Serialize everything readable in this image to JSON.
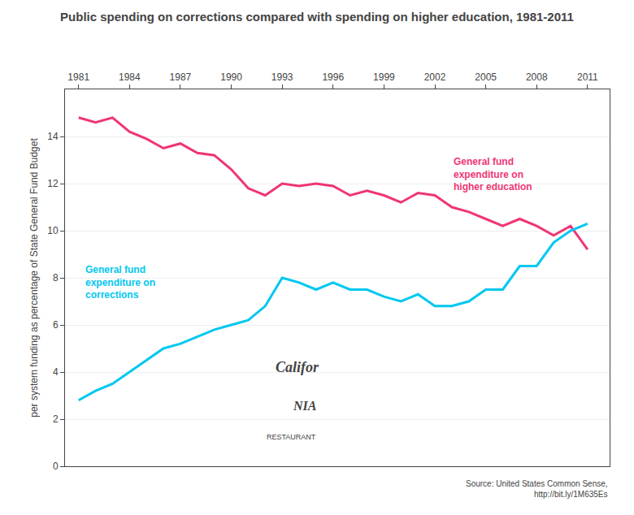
{
  "chart_data": {
    "type": "line",
    "title": "Public spending on corrections compared with spending on higher education, 1981-2011",
    "ylabel": "per system funding as percentage of State General Fund Budget",
    "x": [
      1981,
      1982,
      1983,
      1984,
      1985,
      1986,
      1987,
      1988,
      1989,
      1990,
      1991,
      1992,
      1993,
      1994,
      1995,
      1996,
      1997,
      1998,
      1999,
      2000,
      2001,
      2002,
      2003,
      2004,
      2005,
      2006,
      2007,
      2008,
      2009,
      2010,
      2011
    ],
    "series": [
      {
        "color": "#f03575",
        "values": [
          14.8,
          14.6,
          14.8,
          14.2,
          13.9,
          13.5,
          13.7,
          13.3,
          13.2,
          12.6,
          11.8,
          11.5,
          12.0,
          11.9,
          12.0,
          11.9,
          11.5,
          11.7,
          11.5,
          11.2,
          11.6,
          11.5,
          11.0,
          10.8,
          10.5,
          10.2,
          10.5,
          10.2,
          9.8,
          10.2,
          9.2
        ]
      },
      {
        "color": "#00c8f0",
        "values": [
          2.8,
          3.2,
          3.5,
          4.0,
          4.5,
          5.0,
          5.2,
          5.5,
          5.8,
          6.0,
          6.2,
          6.8,
          8.0,
          7.8,
          7.5,
          7.8,
          7.5,
          7.5,
          7.2,
          7.0,
          7.3,
          6.8,
          6.8,
          7.0,
          7.5,
          7.5,
          8.5,
          8.5,
          9.5,
          10.0,
          10.3
        ]
      }
    ],
    "xlim": [
      1980.2,
      2012.3
    ],
    "xticks": [
      1981,
      1984,
      1987,
      1990,
      1993,
      1996,
      1999,
      2002,
      2005,
      2008,
      2011
    ],
    "ylim": [
      0,
      16
    ],
    "yticks": [
      0,
      2,
      4,
      6,
      8,
      10,
      12,
      14
    ],
    "grid": "y",
    "annotations": [
      {
        "text": "General fund\nexpenditure on\ncorrections",
        "color": "#00c8f0"
      },
      {
        "text": "General fund\nexpenditure on\nhigher education",
        "color": "#f03575"
      },
      {
        "text": "Source: United States Common Sense,\nhttp://bit.ly/1M635Es"
      },
      {
        "text": "Califor"
      },
      {
        "text": "NIA"
      },
      {
        "text": "RESTAURANT"
      }
    ]
  }
}
